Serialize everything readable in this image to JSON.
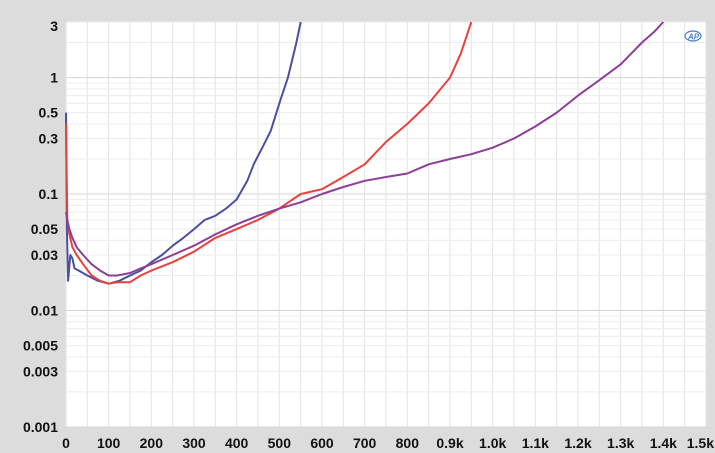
{
  "chart_data": {
    "type": "line",
    "title": "",
    "xlabel": "",
    "ylabel": "",
    "xlim": [
      0,
      1500
    ],
    "ylim": [
      0.001,
      3
    ],
    "y_scale": "log",
    "grid": true,
    "x_ticks": [
      0,
      100,
      200,
      300,
      400,
      500,
      600,
      700,
      800,
      900,
      1000,
      1100,
      1200,
      1300,
      1400,
      1500
    ],
    "x_tick_labels": [
      "0",
      "100",
      "200",
      "300",
      "400",
      "500",
      "600",
      "700",
      "800",
      "0.9k",
      "1.0k",
      "1.1k",
      "1.2k",
      "1.3k",
      "1.4k",
      "1.5k"
    ],
    "y_ticks": [
      0.001,
      0.003,
      0.005,
      0.01,
      0.03,
      0.05,
      0.1,
      0.3,
      0.5,
      1,
      3
    ],
    "y_tick_labels": [
      "0.001",
      "0.003",
      "0.005",
      "0.01",
      "0.03",
      "0.05",
      "0.1",
      "0.3",
      "0.5",
      "1",
      "3"
    ],
    "logo_text": "AP",
    "series": [
      {
        "color": "#4b4f9e",
        "x": [
          0,
          2,
          5,
          10,
          15,
          20,
          30,
          50,
          75,
          100,
          125,
          150,
          175,
          200,
          225,
          250,
          275,
          300,
          325,
          350,
          375,
          400,
          425,
          440,
          460,
          480,
          500,
          520,
          540,
          550
        ],
        "y": [
          0.5,
          0.05,
          0.018,
          0.03,
          0.028,
          0.023,
          0.022,
          0.02,
          0.018,
          0.017,
          0.018,
          0.02,
          0.022,
          0.026,
          0.03,
          0.036,
          0.042,
          0.05,
          0.06,
          0.065,
          0.075,
          0.09,
          0.13,
          0.18,
          0.25,
          0.35,
          0.6,
          1.0,
          2.0,
          3.0
        ]
      },
      {
        "color": "#e8413c",
        "x": [
          0,
          3,
          8,
          15,
          25,
          40,
          60,
          80,
          100,
          120,
          150,
          175,
          200,
          250,
          300,
          350,
          400,
          450,
          500,
          550,
          600,
          650,
          700,
          750,
          800,
          850,
          900,
          925,
          950
        ],
        "y": [
          0.4,
          0.06,
          0.045,
          0.035,
          0.03,
          0.025,
          0.02,
          0.018,
          0.017,
          0.0175,
          0.0175,
          0.02,
          0.022,
          0.026,
          0.032,
          0.042,
          0.05,
          0.06,
          0.075,
          0.1,
          0.11,
          0.14,
          0.18,
          0.28,
          0.4,
          0.6,
          1.0,
          1.6,
          3.0
        ]
      },
      {
        "color": "#8b3f96",
        "x": [
          0,
          3,
          8,
          15,
          25,
          40,
          60,
          80,
          100,
          120,
          150,
          175,
          200,
          250,
          300,
          350,
          400,
          450,
          500,
          550,
          600,
          650,
          700,
          750,
          800,
          850,
          900,
          950,
          1000,
          1050,
          1100,
          1150,
          1200,
          1250,
          1300,
          1350,
          1380,
          1400
        ],
        "y": [
          0.07,
          0.06,
          0.05,
          0.042,
          0.035,
          0.03,
          0.025,
          0.022,
          0.02,
          0.02,
          0.021,
          0.023,
          0.025,
          0.03,
          0.036,
          0.045,
          0.055,
          0.065,
          0.075,
          0.085,
          0.1,
          0.115,
          0.13,
          0.14,
          0.15,
          0.18,
          0.2,
          0.22,
          0.25,
          0.3,
          0.38,
          0.5,
          0.7,
          0.95,
          1.3,
          2.0,
          2.5,
          3.0
        ]
      }
    ]
  }
}
